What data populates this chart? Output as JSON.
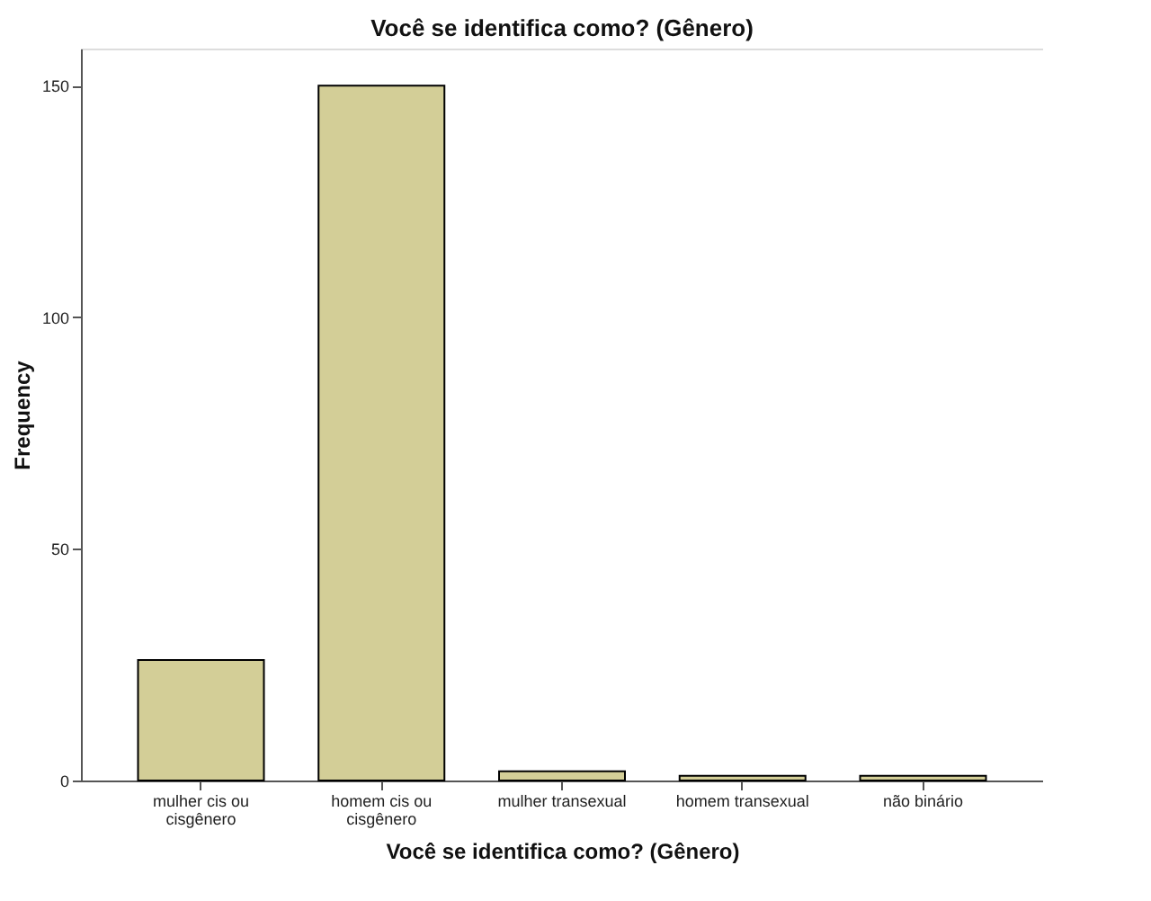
{
  "chart_data": {
    "type": "bar",
    "title": "Você se identifica como? (Gênero)",
    "xlabel": "Você se identifica como? (Gênero)",
    "ylabel": "Frequency",
    "categories": [
      "mulher cis ou\ncisgênero",
      "homem cis ou\ncisgênero",
      "mulher transexual",
      "homem transexual",
      "não binário"
    ],
    "values": [
      26,
      150,
      2,
      1,
      1
    ],
    "color": "#d3ce97",
    "ylim": [
      0,
      158
    ],
    "yticks": [
      0,
      50,
      100,
      150
    ],
    "grid": false
  }
}
